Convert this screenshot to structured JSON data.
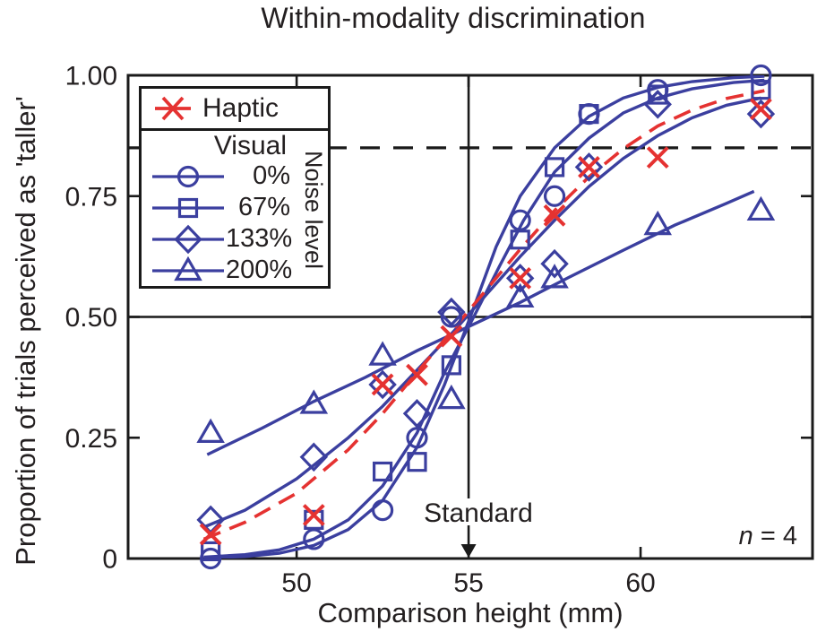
{
  "title": "Within-modality discrimination",
  "axes": {
    "xlabel": "Comparison height (mm)",
    "ylabel": "Proportion of trials perceived as 'taller'"
  },
  "annotations": {
    "standard_label": "Standard",
    "n_italic": "n",
    "n_rest": " = 4"
  },
  "legend": {
    "haptic_label": "Haptic",
    "visual_label": "Visual",
    "noise_label": "Noise level",
    "items": [
      {
        "label": "0%",
        "marker": "circle"
      },
      {
        "label": "67%",
        "marker": "square"
      },
      {
        "label": "133%",
        "marker": "diamond"
      },
      {
        "label": "200%",
        "marker": "triangle"
      }
    ]
  },
  "colors": {
    "visual_blue": "#3b3f9f",
    "haptic_red": "#e53231",
    "axis_black": "#1a1a1a",
    "text_black": "#231f20"
  },
  "chart_data": {
    "type": "scatter with fitted psychometric curves",
    "title": "Within-modality discrimination",
    "xlabel": "Comparison height (mm)",
    "ylabel": "Proportion of trials perceived as 'taller'",
    "xlim": [
      45.1,
      65.0
    ],
    "ylim": [
      0,
      1
    ],
    "x_ticks": [
      {
        "value": 50,
        "label": "50"
      },
      {
        "value": 55,
        "label": "55"
      },
      {
        "value": 60,
        "label": "60"
      }
    ],
    "y_ticks": [
      {
        "value": 0,
        "label": "0"
      },
      {
        "value": 0.25,
        "label": "0.25"
      },
      {
        "value": 0.5,
        "label": "0.50"
      },
      {
        "value": 0.75,
        "label": "0.75"
      },
      {
        "value": 1,
        "label": "1.00"
      }
    ],
    "reference_lines": {
      "pse_horizontal": 0.5,
      "threshold_dashed": 0.85,
      "standard_vertical_x": 55
    },
    "sample_size_note": "n = 4",
    "series": [
      {
        "name": "Visual 0% noise",
        "marker": "circle",
        "color_key": "visual_blue",
        "line": "solid",
        "x": [
          47.5,
          50.5,
          52.5,
          53.5,
          54.5,
          56.5,
          57.5,
          58.5,
          60.5,
          63.5
        ],
        "y": [
          0.0,
          0.04,
          0.1,
          0.25,
          0.5,
          0.7,
          0.75,
          0.92,
          0.97,
          1.0
        ],
        "fit": [
          [
            47.3,
            0.001
          ],
          [
            48.5,
            0.004
          ],
          [
            49.5,
            0.011
          ],
          [
            50.5,
            0.027
          ],
          [
            51.5,
            0.06
          ],
          [
            52.5,
            0.12
          ],
          [
            53.5,
            0.23
          ],
          [
            54.3,
            0.36
          ],
          [
            55.05,
            0.5
          ],
          [
            55.8,
            0.645
          ],
          [
            56.5,
            0.75
          ],
          [
            57.5,
            0.85
          ],
          [
            58.5,
            0.915
          ],
          [
            59.5,
            0.953
          ],
          [
            60.5,
            0.975
          ],
          [
            61.5,
            0.987
          ],
          [
            62.7,
            0.995
          ],
          [
            63.6,
            0.998
          ]
        ]
      },
      {
        "name": "Visual 67% noise",
        "marker": "square",
        "color_key": "visual_blue",
        "line": "solid",
        "x": [
          47.5,
          50.5,
          52.5,
          53.5,
          54.5,
          56.5,
          57.5,
          58.5,
          60.5,
          63.5
        ],
        "y": [
          0.015,
          0.08,
          0.18,
          0.2,
          0.4,
          0.66,
          0.81,
          0.92,
          0.96,
          0.97
        ],
        "fit": [
          [
            47.3,
            0.003
          ],
          [
            48.5,
            0.008
          ],
          [
            49.5,
            0.018
          ],
          [
            50.5,
            0.04
          ],
          [
            51.5,
            0.08
          ],
          [
            52.5,
            0.15
          ],
          [
            53.5,
            0.26
          ],
          [
            54.3,
            0.385
          ],
          [
            55.15,
            0.5
          ],
          [
            55.9,
            0.605
          ],
          [
            56.6,
            0.7
          ],
          [
            57.5,
            0.8
          ],
          [
            58.5,
            0.87
          ],
          [
            59.5,
            0.922
          ],
          [
            60.5,
            0.953
          ],
          [
            61.5,
            0.972
          ],
          [
            62.7,
            0.985
          ],
          [
            63.6,
            0.99
          ]
        ]
      },
      {
        "name": "Visual 133% noise",
        "marker": "diamond",
        "color_key": "visual_blue",
        "line": "solid",
        "x": [
          47.5,
          50.5,
          52.5,
          53.5,
          54.5,
          56.5,
          57.5,
          58.5,
          60.5,
          63.5
        ],
        "y": [
          0.08,
          0.21,
          0.36,
          0.3,
          0.51,
          0.58,
          0.61,
          0.81,
          0.94,
          0.92
        ],
        "fit": [
          [
            47.3,
            0.065
          ],
          [
            48.5,
            0.1
          ],
          [
            50,
            0.165
          ],
          [
            51.5,
            0.25
          ],
          [
            52.5,
            0.315
          ],
          [
            53.5,
            0.39
          ],
          [
            54.5,
            0.465
          ],
          [
            55.5,
            0.545
          ],
          [
            56.5,
            0.625
          ],
          [
            57.5,
            0.7
          ],
          [
            58.5,
            0.77
          ],
          [
            59.5,
            0.828
          ],
          [
            60.5,
            0.875
          ],
          [
            61.5,
            0.912
          ],
          [
            62.5,
            0.938
          ],
          [
            63.5,
            0.953
          ]
        ]
      },
      {
        "name": "Visual 200% noise",
        "marker": "triangle",
        "color_key": "visual_blue",
        "line": "solid",
        "x": [
          47.5,
          50.5,
          52.5,
          54.5,
          56.5,
          57.5,
          60.5,
          63.5
        ],
        "y": [
          0.26,
          0.32,
          0.42,
          0.33,
          0.54,
          0.58,
          0.69,
          0.72
        ],
        "fit": [
          [
            47.4,
            0.215
          ],
          [
            49,
            0.27
          ],
          [
            50.5,
            0.325
          ],
          [
            52,
            0.375
          ],
          [
            53.5,
            0.43
          ],
          [
            55,
            0.48
          ],
          [
            56.5,
            0.53
          ],
          [
            58,
            0.585
          ],
          [
            59.5,
            0.638
          ],
          [
            61,
            0.69
          ],
          [
            62.5,
            0.735
          ],
          [
            63.3,
            0.76
          ]
        ]
      },
      {
        "name": "Haptic",
        "marker": "x",
        "color_key": "haptic_red",
        "line": "dashed",
        "x": [
          47.5,
          50.5,
          52.5,
          53.5,
          54.5,
          56.5,
          57.5,
          58.5,
          60.5,
          63.5
        ],
        "y": [
          0.05,
          0.09,
          0.36,
          0.38,
          0.46,
          0.58,
          0.71,
          0.81,
          0.83,
          0.93
        ],
        "fit": [
          [
            47.3,
            0.04
          ],
          [
            48.5,
            0.075
          ],
          [
            50,
            0.135
          ],
          [
            51.5,
            0.225
          ],
          [
            52.5,
            0.3
          ],
          [
            53.5,
            0.385
          ],
          [
            54.5,
            0.47
          ],
          [
            55.5,
            0.555
          ],
          [
            56.5,
            0.64
          ],
          [
            57.5,
            0.72
          ],
          [
            58.5,
            0.79
          ],
          [
            59.5,
            0.848
          ],
          [
            60.5,
            0.895
          ],
          [
            61.5,
            0.928
          ],
          [
            62.5,
            0.952
          ],
          [
            63.6,
            0.968
          ]
        ]
      }
    ]
  }
}
